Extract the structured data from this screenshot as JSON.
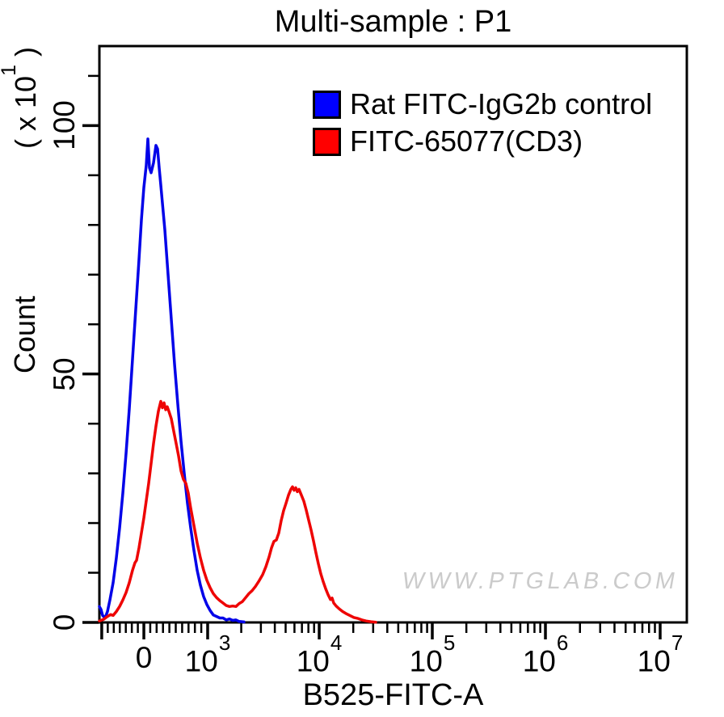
{
  "title": "Multi-sample : P1",
  "watermark": "WWW.PTGLAB.COM",
  "legend": {
    "items": [
      {
        "label": "Rat FITC-IgG2b control",
        "color": "#0000ff"
      },
      {
        "label": "FITC-65077(CD3)",
        "color": "#ff0000"
      }
    ]
  },
  "chart_data": {
    "type": "histogram-overlay-flow-cytometry",
    "title": "Multi-sample : P1",
    "xlabel": "B525-FITC-A",
    "ylabel": "Count",
    "grid": false,
    "legend_position": "top-right-inside",
    "x_axis": {
      "title": "B525-FITC-A",
      "scale": "logicle",
      "edge_tick_frac": 0.004,
      "major_ticks": [
        {
          "label": "0",
          "value": 0,
          "frac": 0.0757
        },
        {
          "base": "10",
          "exp": "3",
          "value": 1000,
          "frac": 0.1843
        },
        {
          "base": "10",
          "exp": "4",
          "value": 10000,
          "frac": 0.3742
        },
        {
          "base": "10",
          "exp": "5",
          "value": 100000,
          "frac": 0.5667
        },
        {
          "base": "10",
          "exp": "6",
          "value": 1000000,
          "frac": 0.7593
        },
        {
          "base": "10",
          "exp": "7",
          "value": 10000000,
          "frac": 0.9546
        }
      ]
    },
    "y_axis": {
      "title": "Count",
      "unit": {
        "prefix": "( x 10",
        "exp": "1",
        "suffix": " )"
      },
      "major_ticks": [
        0,
        50,
        100
      ],
      "minor_step": 10,
      "max": 116
    },
    "series": [
      {
        "name": "Rat FITC-IgG2b control",
        "color": "#0202e8",
        "peak_summary": {
          "peak_x_value": "~0",
          "peak_count": 97
        },
        "points": [
          [
            0.0,
            3.2
          ],
          [
            0.0028,
            2.6
          ],
          [
            0.0055,
            1.4
          ],
          [
            0.0096,
            0.9
          ],
          [
            0.0138,
            2.2
          ],
          [
            0.0179,
            4.5
          ],
          [
            0.0234,
            8
          ],
          [
            0.0289,
            13
          ],
          [
            0.0344,
            19
          ],
          [
            0.0399,
            26
          ],
          [
            0.0454,
            34
          ],
          [
            0.0509,
            43
          ],
          [
            0.0564,
            53
          ],
          [
            0.0619,
            63
          ],
          [
            0.0674,
            73
          ],
          [
            0.0715,
            81
          ],
          [
            0.0757,
            87.5
          ],
          [
            0.0798,
            92
          ],
          [
            0.0825,
            97.3
          ],
          [
            0.0853,
            91.5
          ],
          [
            0.088,
            90.5
          ],
          [
            0.0921,
            92.5
          ],
          [
            0.0963,
            96
          ],
          [
            0.099,
            95.3
          ],
          [
            0.1018,
            91.5
          ],
          [
            0.1045,
            88
          ],
          [
            0.1114,
            79
          ],
          [
            0.1169,
            70
          ],
          [
            0.1224,
            61
          ],
          [
            0.1279,
            52
          ],
          [
            0.1334,
            44
          ],
          [
            0.1389,
            36.5
          ],
          [
            0.1444,
            30
          ],
          [
            0.1499,
            24
          ],
          [
            0.1554,
            19
          ],
          [
            0.1609,
            14.5
          ],
          [
            0.1664,
            10.5
          ],
          [
            0.1719,
            7.5
          ],
          [
            0.1774,
            5.2
          ],
          [
            0.1829,
            3.6
          ],
          [
            0.1884,
            2.4
          ],
          [
            0.1939,
            1.5
          ],
          [
            0.1995,
            1.2
          ],
          [
            0.205,
            0.9
          ],
          [
            0.2105,
            0.9
          ],
          [
            0.216,
            0.5
          ],
          [
            0.2215,
            0.7
          ],
          [
            0.227,
            0.4
          ],
          [
            0.2325,
            0.5
          ],
          [
            0.238,
            0.2
          ],
          [
            0.2462,
            0.1
          ]
        ]
      },
      {
        "name": "FITC-65077(CD3)",
        "color": "#ee0404",
        "peak_summary": {
          "peak1_x_value": "~150",
          "peak1_count": 44.5,
          "peak2_x_value": "~6000",
          "peak2_count": 27
        },
        "points": [
          [
            0.0,
            0.3
          ],
          [
            0.0069,
            0.6
          ],
          [
            0.0138,
            1.2
          ],
          [
            0.0193,
            1.6
          ],
          [
            0.0234,
            1.4
          ],
          [
            0.0289,
            2.2
          ],
          [
            0.0344,
            3.2
          ],
          [
            0.0399,
            4.5
          ],
          [
            0.0454,
            6
          ],
          [
            0.0509,
            8
          ],
          [
            0.0564,
            10.5
          ],
          [
            0.0605,
            12
          ],
          [
            0.0633,
            12.5
          ],
          [
            0.0674,
            15
          ],
          [
            0.0715,
            18
          ],
          [
            0.0757,
            21
          ],
          [
            0.0798,
            24.5
          ],
          [
            0.0839,
            28
          ],
          [
            0.088,
            32
          ],
          [
            0.0921,
            36
          ],
          [
            0.0963,
            39.5
          ],
          [
            0.1004,
            42.5
          ],
          [
            0.1045,
            44.5
          ],
          [
            0.1073,
            43.2
          ],
          [
            0.11,
            44.2
          ],
          [
            0.1128,
            42.8
          ],
          [
            0.1155,
            43.4
          ],
          [
            0.1183,
            42.5
          ],
          [
            0.1224,
            41
          ],
          [
            0.1265,
            38.5
          ],
          [
            0.1307,
            36
          ],
          [
            0.1348,
            33.5
          ],
          [
            0.1389,
            30.5
          ],
          [
            0.143,
            28.8
          ],
          [
            0.1472,
            28
          ],
          [
            0.1513,
            26
          ],
          [
            0.1554,
            23
          ],
          [
            0.1609,
            19.5
          ],
          [
            0.1664,
            16
          ],
          [
            0.1719,
            13
          ],
          [
            0.1774,
            10.5
          ],
          [
            0.1829,
            8.5
          ],
          [
            0.1884,
            7
          ],
          [
            0.1939,
            5.8
          ],
          [
            0.1995,
            5
          ],
          [
            0.205,
            4.4
          ],
          [
            0.2105,
            3.9
          ],
          [
            0.216,
            3.4
          ],
          [
            0.2215,
            3.2
          ],
          [
            0.227,
            3.3
          ],
          [
            0.2325,
            3.2
          ],
          [
            0.238,
            3.8
          ],
          [
            0.2435,
            4.2
          ],
          [
            0.249,
            5
          ],
          [
            0.2545,
            5.8
          ],
          [
            0.26,
            6.4
          ],
          [
            0.2655,
            7.2
          ],
          [
            0.271,
            8.2
          ],
          [
            0.2779,
            9.6
          ],
          [
            0.2834,
            11.2
          ],
          [
            0.2889,
            13.2
          ],
          [
            0.293,
            15
          ],
          [
            0.2971,
            16.3
          ],
          [
            0.3012,
            16.6
          ],
          [
            0.3054,
            18
          ],
          [
            0.3095,
            20.5
          ],
          [
            0.3136,
            22.5
          ],
          [
            0.3178,
            24
          ],
          [
            0.3219,
            25.6
          ],
          [
            0.326,
            26.8
          ],
          [
            0.3287,
            27.3
          ],
          [
            0.3315,
            26.6
          ],
          [
            0.3342,
            27.1
          ],
          [
            0.337,
            26.3
          ],
          [
            0.3397,
            26.8
          ],
          [
            0.3439,
            25.6
          ],
          [
            0.348,
            24.4
          ],
          [
            0.3521,
            22.6
          ],
          [
            0.3562,
            20.6
          ],
          [
            0.3604,
            18.6
          ],
          [
            0.3645,
            16.4
          ],
          [
            0.3686,
            14
          ],
          [
            0.3727,
            11.8
          ],
          [
            0.3769,
            9.8
          ],
          [
            0.381,
            8.2
          ],
          [
            0.3851,
            6.8
          ],
          [
            0.3893,
            5.6
          ],
          [
            0.3934,
            4.6
          ],
          [
            0.3961,
            4.9
          ],
          [
            0.3989,
            3.9
          ],
          [
            0.403,
            3.3
          ],
          [
            0.4085,
            2.7
          ],
          [
            0.414,
            2.2
          ],
          [
            0.4195,
            1.8
          ],
          [
            0.4264,
            1.4
          ],
          [
            0.4333,
            1.0
          ],
          [
            0.4402,
            0.8
          ],
          [
            0.447,
            0.5
          ],
          [
            0.4539,
            0.3
          ],
          [
            0.4622,
            0.15
          ],
          [
            0.4704,
            0.05
          ]
        ]
      }
    ]
  }
}
